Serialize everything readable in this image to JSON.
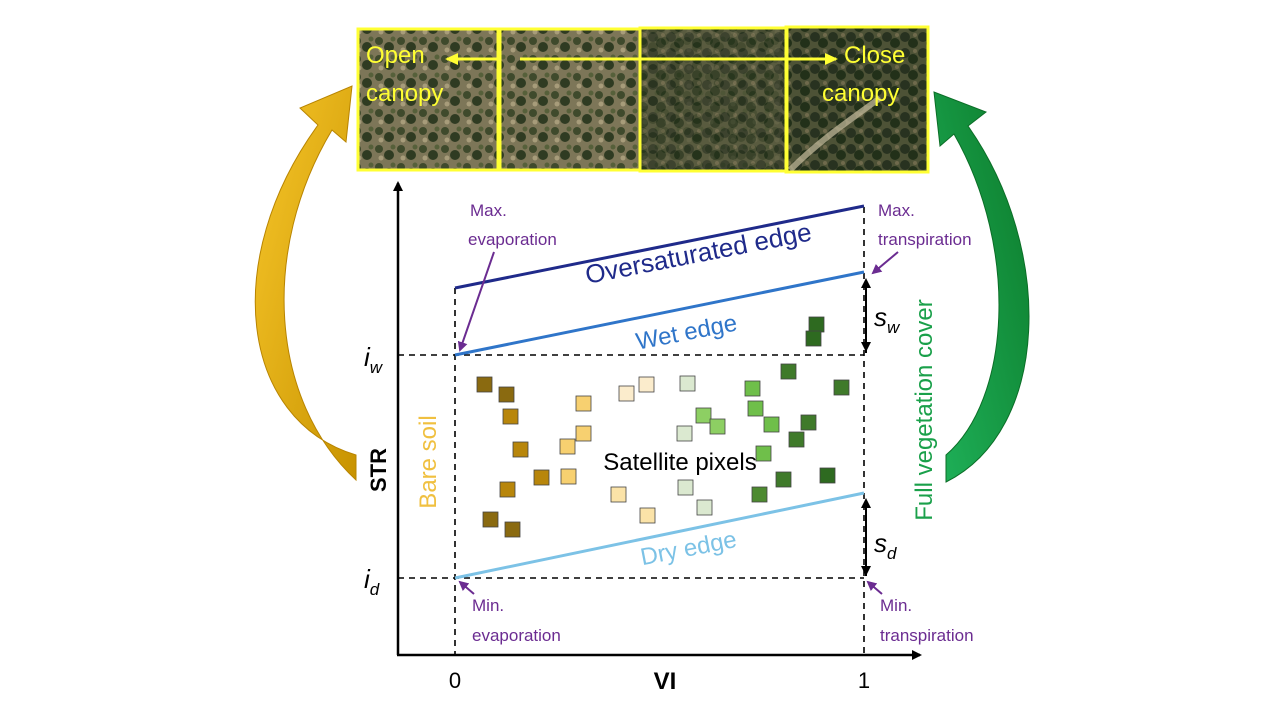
{
  "photo_strip": {
    "left_label": [
      "Open",
      "canopy"
    ],
    "right_label": [
      "Close",
      "canopy"
    ]
  },
  "axes": {
    "y_label": "STR",
    "x_label": "VI",
    "x_tick_0": "0",
    "x_tick_1": "1",
    "iw_symbol": "i",
    "iw_sub": "w",
    "id_symbol": "i",
    "id_sub": "d"
  },
  "edges": {
    "oversaturated": "Oversaturated edge",
    "wet": "Wet edge",
    "dry": "Dry edge"
  },
  "annotations": {
    "max_evaporation": [
      "Max.",
      "evaporation"
    ],
    "max_transpiration": [
      "Max.",
      "transpiration"
    ],
    "min_evaporation": [
      "Min.",
      "evaporation"
    ],
    "min_transpiration": [
      "Min.",
      "transpiration"
    ],
    "sw_symbol": "s",
    "sw_sub": "w",
    "sd_symbol": "s",
    "sd_sub": "d"
  },
  "side_labels": {
    "bare_soil": "Bare soil",
    "full_vegetation": "Full vegetation cover"
  },
  "center_label": "Satellite pixels",
  "colors": {
    "oversaturated_edge": "#1f2a8a",
    "wet_edge": "#2f75c9",
    "dry_edge": "#7cc2e6",
    "annotation": "#6b2c91",
    "bare_soil": "#f0c040",
    "full_vegetation": "#1aa04a",
    "arrow_left": "#e0a800",
    "arrow_right": "#149a3c",
    "photo_frame": "#ffff33"
  }
}
